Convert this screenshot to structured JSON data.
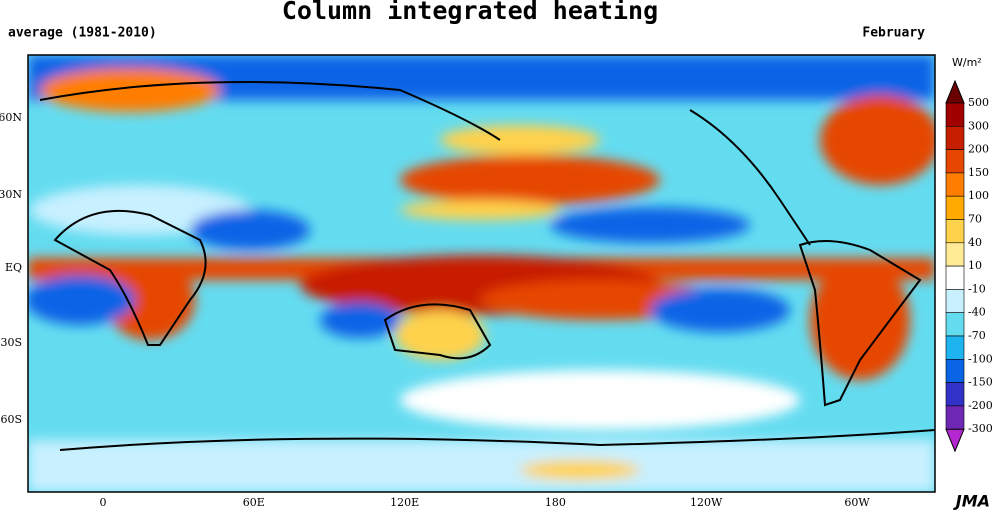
{
  "header": {
    "title": "Column integrated heating",
    "subtitle": "average (1981-2010)",
    "month": "February"
  },
  "map": {
    "lat_labels": [
      "60N",
      "30N",
      "EQ",
      "30S",
      "60S"
    ],
    "lon_labels": [
      "0",
      "60E",
      "120E",
      "180",
      "120W",
      "60W"
    ]
  },
  "legend": {
    "unit": "W/m²",
    "levels": [
      500,
      300,
      200,
      150,
      100,
      70,
      40,
      10,
      -10,
      -40,
      -70,
      -100,
      -150,
      -200,
      -300
    ],
    "colors": [
      "#6b0000",
      "#a00000",
      "#c81e00",
      "#e64600",
      "#ff7d00",
      "#ffaa00",
      "#ffd24b",
      "#ffeb96",
      "#ffffff",
      "#c8f0ff",
      "#64dcf0",
      "#1eb4f0",
      "#0a64e6",
      "#3232c8",
      "#6e28b4",
      "#b428d2"
    ]
  },
  "credit": "JMA"
}
